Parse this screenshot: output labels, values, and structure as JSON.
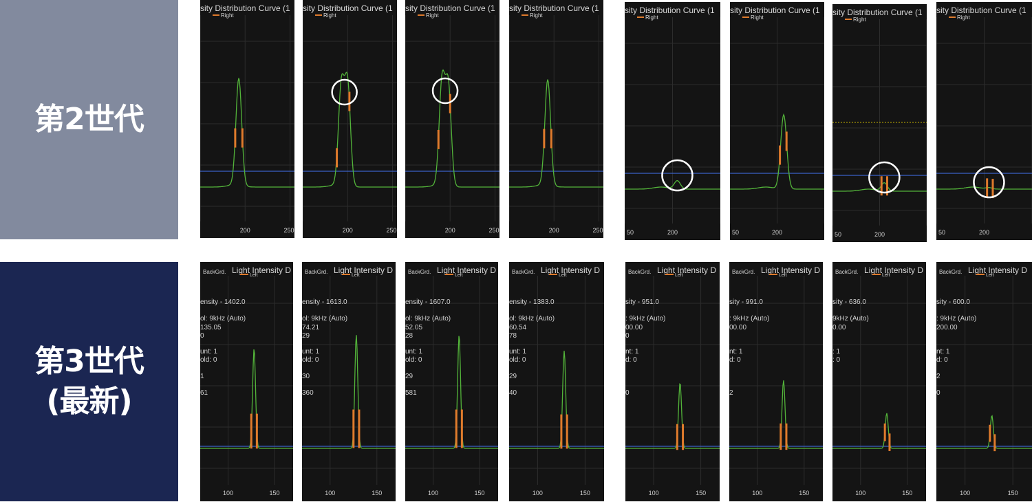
{
  "row_labels": {
    "gen2": "第2世代",
    "gen3": "第3世代\n(最新)"
  },
  "colors": {
    "gen2_label_bg": "#828a9e",
    "gen3_label_bg": "#1b2652",
    "panel_bg": "#141414",
    "curve": "#53b43a",
    "marker": "#e07b2c",
    "baseline": "#3a62c8",
    "circle": "#ffffff",
    "threshold_dotted": "#c8b400"
  },
  "gen2": {
    "title_text": "sity Distribution Curve (1",
    "legend_text": "Right",
    "x_ticks_a": [
      "",
      "200",
      "250"
    ],
    "x_ticks_b": [
      "50",
      "200",
      ""
    ],
    "panels": [
      {
        "peaks": [
          {
            "x": 193,
            "h": 0.78
          }
        ],
        "baseline": 0.3,
        "markers": [
          189,
          197
        ],
        "circle": false
      },
      {
        "peaks": [
          {
            "x": 193,
            "h": 0.72
          },
          {
            "x": 200,
            "h": 0.74
          }
        ],
        "baseline": 0.3,
        "markers": [
          188,
          202
        ],
        "circle": true
      },
      {
        "peaks": [
          {
            "x": 191,
            "h": 0.75
          },
          {
            "x": 198,
            "h": 0.72
          }
        ],
        "baseline": 0.3,
        "markers": [
          187,
          200
        ],
        "circle": true
      },
      {
        "peaks": [
          {
            "x": 193,
            "h": 0.77
          }
        ],
        "baseline": 0.3,
        "markers": [
          189,
          197
        ],
        "circle": false
      },
      {
        "peaks": [
          {
            "x": 205,
            "h": 0.06
          }
        ],
        "baseline": 0.3,
        "markers": [],
        "circle": true,
        "ticks": "b"
      },
      {
        "peaks": [
          {
            "x": 207,
            "h": 0.54
          }
        ],
        "baseline": 0.3,
        "markers": [
          203,
          210
        ],
        "circle": false,
        "ticks": "b"
      },
      {
        "peaks": [
          {
            "x": 205,
            "h": 0.06
          }
        ],
        "baseline": 0.3,
        "markers": [
          202,
          208
        ],
        "circle": true,
        "ticks": "b",
        "dotted": true
      },
      {
        "peaks": [
          {
            "x": 205,
            "h": 0.01
          }
        ],
        "baseline": 0.3,
        "markers": [
          203,
          209
        ],
        "circle": true,
        "ticks": "b"
      }
    ]
  },
  "gen3": {
    "title_text": "Light Intensity D",
    "legend_left": "BackGrd.",
    "legend_mid": "Left",
    "x_ticks": [
      "100",
      "150"
    ],
    "panels": [
      {
        "intensity": "ensity - 1402.0",
        "freq": "ol: 9kHz (Auto)",
        "l1": "135.05",
        "l2": "0",
        "count": "unt: 1",
        "hold": "old: 0",
        "v1": "1",
        "v2": "61",
        "peak_h": 0.88,
        "markers": [
          125,
          131
        ]
      },
      {
        "intensity": "ensity - 1613.0",
        "freq": "ol: 9kHz (Auto)",
        "l1": "74.21",
        "l2": "29",
        "count": "unt: 1",
        "hold": "old: 0",
        "v1": "30",
        "v2": "360",
        "peak_h": 1.0,
        "markers": [
          125,
          131
        ]
      },
      {
        "intensity": "ensity - 1607.0",
        "freq": "ol: 9kHz (Auto)",
        "l1": "52.05",
        "l2": "28",
        "count": "unt: 1",
        "hold": "old: 0",
        "v1": "29",
        "v2": "581",
        "peak_h": 1.0,
        "markers": [
          125,
          131
        ]
      },
      {
        "intensity": "ensity - 1383.0",
        "freq": "ol: 9kHz (Auto)",
        "l1": "60.54",
        "l2": "78",
        "count": "unt: 1",
        "hold": "old: 0",
        "v1": "29",
        "v2": "40",
        "peak_h": 0.86,
        "markers": [
          125,
          131
        ]
      },
      {
        "intensity": "sity - 951.0",
        "freq": ": 9kHz (Auto)",
        "l1": "00.00",
        "l2": "0",
        "count": "nt: 1",
        "hold": "d: 0",
        "v1": "",
        "v2": "0",
        "peak_h": 0.58,
        "markers": [
          125,
          131
        ]
      },
      {
        "intensity": "sity - 991.0",
        "freq": ": 9kHz (Auto)",
        "l1": "00.00",
        "l2": "",
        "count": "nt: 1",
        "hold": "d: 0",
        "v1": "",
        "v2": "2",
        "peak_h": 0.6,
        "markers": [
          125,
          131
        ]
      },
      {
        "intensity": "sity - 636.0",
        "freq": "9kHz (Auto)",
        "l1": "0.00",
        "l2": "",
        "count": ": 1",
        "hold": ": 0",
        "v1": "",
        "v2": "",
        "peak_h": 0.31,
        "markers": [
          126,
          131
        ]
      },
      {
        "intensity": "sity - 600.0",
        "freq": ": 9kHz (Auto)",
        "l1": "200.00",
        "l2": "",
        "count": "nt: 1",
        "hold": "d: 0",
        "v1": "2",
        "v2": "0",
        "peak_h": 0.29,
        "markers": [
          126,
          131
        ]
      }
    ]
  }
}
